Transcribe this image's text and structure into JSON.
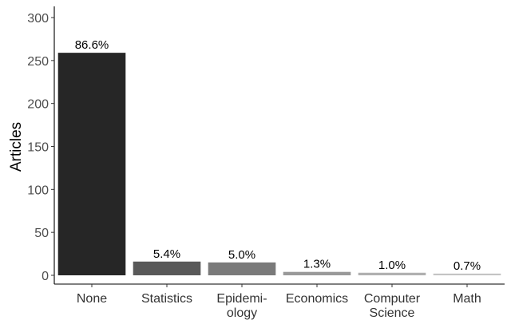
{
  "chart_data": {
    "type": "bar",
    "ylabel": "Articles",
    "ylim": [
      0,
      300
    ],
    "yticks": [
      "0",
      "50",
      "100",
      "150",
      "200",
      "250",
      "300"
    ],
    "categories": [
      {
        "lines": [
          "None"
        ]
      },
      {
        "lines": [
          "Statistics"
        ]
      },
      {
        "lines": [
          "Epidemi-",
          "ology"
        ]
      },
      {
        "lines": [
          "Economics"
        ]
      },
      {
        "lines": [
          "Computer",
          "Science"
        ]
      },
      {
        "lines": [
          "Math"
        ]
      }
    ],
    "values": [
      259,
      16,
      15,
      4,
      3,
      2
    ],
    "labels": [
      "86.6%",
      "5.4%",
      "5.0%",
      "1.3%",
      "1.0%",
      "0.7%"
    ],
    "colors": [
      "#262626",
      "#595959",
      "#7a7a7a",
      "#999999",
      "#b0b0b0",
      "#c4c4c4"
    ],
    "grid": false,
    "legend": "none"
  }
}
